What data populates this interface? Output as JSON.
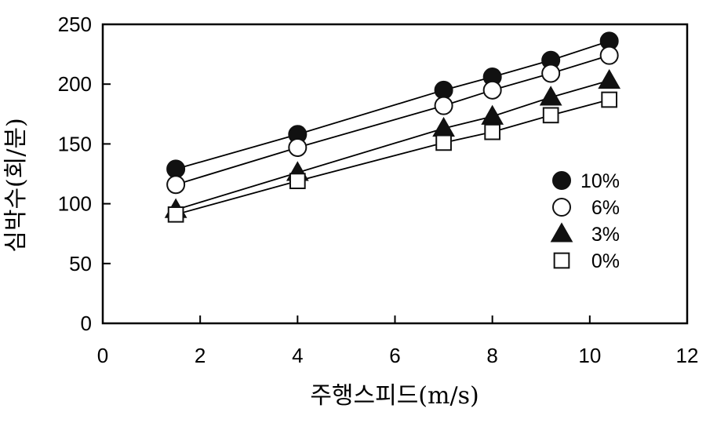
{
  "chart_data": {
    "type": "line",
    "xlabel": "주행스피드(m/s)",
    "ylabel": "심박수(회/분)",
    "xlim": [
      0,
      12
    ],
    "ylim": [
      0,
      250
    ],
    "xticks": [
      "0",
      "2",
      "4",
      "6",
      "8",
      "10",
      "12"
    ],
    "yticks": [
      "0",
      "50",
      "100",
      "150",
      "200",
      "250"
    ],
    "x": [
      1.5,
      4,
      7,
      8,
      9.2,
      10.4
    ],
    "grid": false,
    "legend_position": "right",
    "series": [
      {
        "name": "10%",
        "marker": "filled-circle",
        "values": [
          129,
          158,
          195,
          206,
          220,
          236
        ]
      },
      {
        "name": "6%",
        "marker": "open-circle",
        "values": [
          116,
          147,
          182,
          195,
          209,
          224
        ]
      },
      {
        "name": "3%",
        "marker": "filled-triangle",
        "values": [
          95,
          126,
          163,
          173,
          189,
          203
        ]
      },
      {
        "name": "0%",
        "marker": "open-square",
        "values": [
          91,
          119,
          151,
          160,
          174,
          187
        ]
      }
    ]
  }
}
